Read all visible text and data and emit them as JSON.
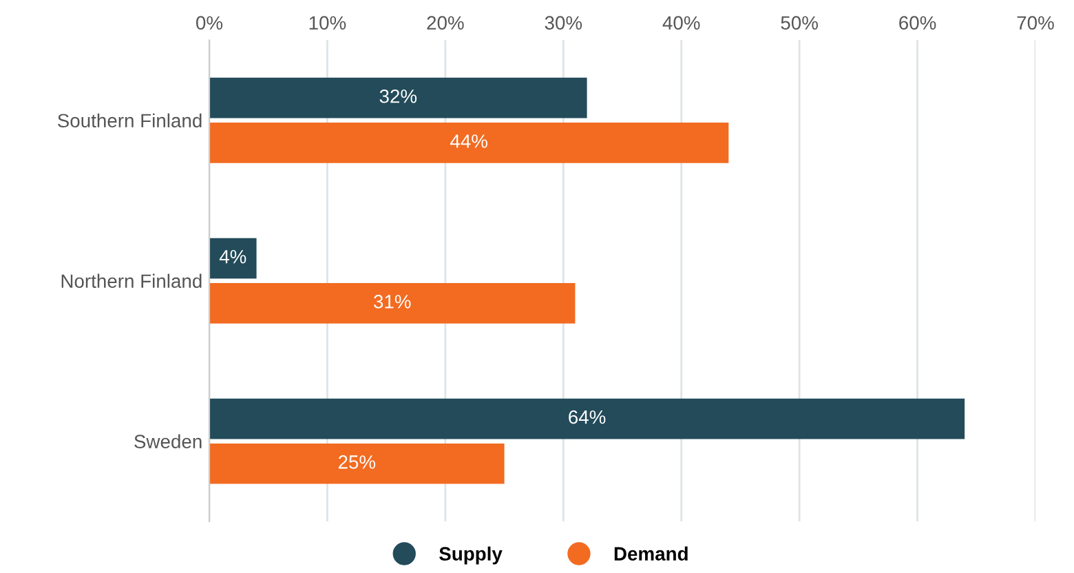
{
  "chart_data": {
    "type": "bar",
    "orientation": "horizontal",
    "categories": [
      "Southern Finland",
      "Northern Finland",
      "Sweden"
    ],
    "series": [
      {
        "name": "Supply",
        "color": "#234b5a",
        "values": [
          32,
          4,
          64
        ],
        "value_labels": [
          "32%",
          "4%",
          "64%"
        ]
      },
      {
        "name": "Demand",
        "color": "#f26b21",
        "values": [
          44,
          31,
          25
        ],
        "value_labels": [
          "44%",
          "31%",
          "25%"
        ]
      }
    ],
    "xlim": [
      0,
      70
    ],
    "xticks": [
      {
        "value": 0,
        "label": "0%"
      },
      {
        "value": 10,
        "label": "10%"
      },
      {
        "value": 20,
        "label": "20%"
      },
      {
        "value": 30,
        "label": "30%"
      },
      {
        "value": 40,
        "label": "40%"
      },
      {
        "value": 50,
        "label": "50%"
      },
      {
        "value": 60,
        "label": "60%"
      },
      {
        "value": 70,
        "label": "70%"
      }
    ],
    "grid": "x",
    "legend": "bottom",
    "marker": "circle"
  }
}
